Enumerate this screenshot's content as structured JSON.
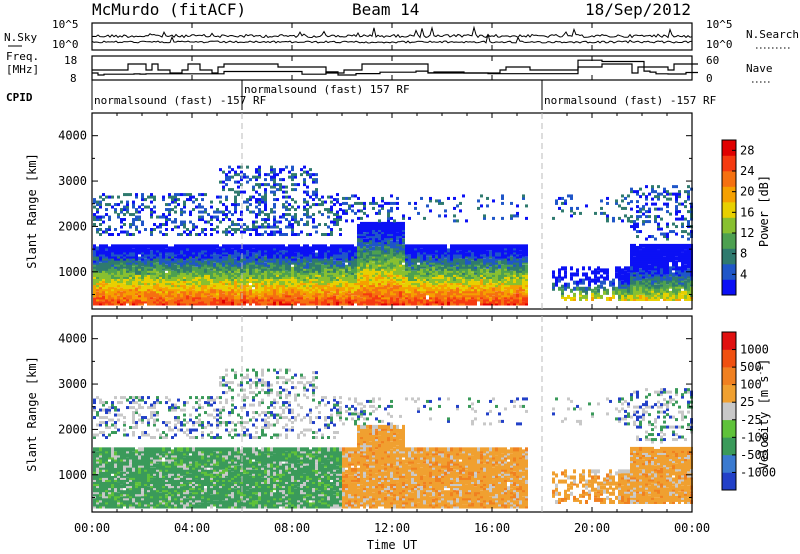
{
  "header": {
    "station": "McMurdo (fitACF)",
    "beam": "Beam 14",
    "date": "18/Sep/2012"
  },
  "noise_panel": {
    "left_label": "N.Sky",
    "right_label": "N.Search",
    "left_ticks": [
      "10^5",
      "10^0"
    ],
    "right_ticks": [
      "10^5",
      "10^0"
    ]
  },
  "freq_panel": {
    "left_label_1": "Freq.",
    "left_label_2": "[MHz]",
    "right_label": "Nave",
    "left_ticks": [
      "18",
      "8"
    ],
    "right_ticks": [
      "60",
      "0"
    ]
  },
  "cpid": {
    "label": "CPID",
    "segments": [
      {
        "text": "normalsound (fast) -157 RF",
        "start_hour": 0
      },
      {
        "text": "normalsound (fast) 157 RF",
        "start_hour": 6
      },
      {
        "text": "normalsound (fast) -157 RF",
        "start_hour": 18
      }
    ]
  },
  "x_axis": {
    "label": "Time UT",
    "ticks": [
      "00:00",
      "04:00",
      "08:00",
      "12:00",
      "16:00",
      "20:00",
      "00:00"
    ]
  },
  "chart_data": [
    {
      "type": "heatmap",
      "parameter": "Power",
      "ylabel": "Slant Range [km]",
      "yticks": [
        1000,
        2000,
        3000,
        4000
      ],
      "ylim": [
        180,
        4500
      ],
      "xlim_hours": [
        0,
        24
      ],
      "colorbar": {
        "label": "Power [dB]",
        "ticks": [
          "28",
          "24",
          "20",
          "16",
          "12",
          "8",
          "4"
        ],
        "range": [
          0,
          30
        ],
        "colors": [
          "#0b10f5",
          "#1f56c8",
          "#2f7a6e",
          "#4da050",
          "#88c030",
          "#e8d000",
          "#f5a000",
          "#f57010",
          "#f53a10",
          "#e00000"
        ]
      }
    },
    {
      "type": "heatmap",
      "parameter": "Velocity",
      "ylabel": "Slant Range [km]",
      "yticks": [
        1000,
        2000,
        3000,
        4000
      ],
      "ylim": [
        180,
        4500
      ],
      "xlim_hours": [
        0,
        24
      ],
      "colorbar": {
        "label": "Velocity [m s",
        "label_superscript": "-1",
        "label_close": "]",
        "ticks": [
          "1000",
          "500",
          "100",
          "25",
          "-25",
          "-100",
          "-500",
          "-1000"
        ],
        "colors": [
          "#2240c8",
          "#3a7ad0",
          "#3a9a5a",
          "#5fc23a",
          "#c8c8c8",
          "#f0a030",
          "#f08020",
          "#f05010",
          "#e01010"
        ]
      }
    }
  ]
}
